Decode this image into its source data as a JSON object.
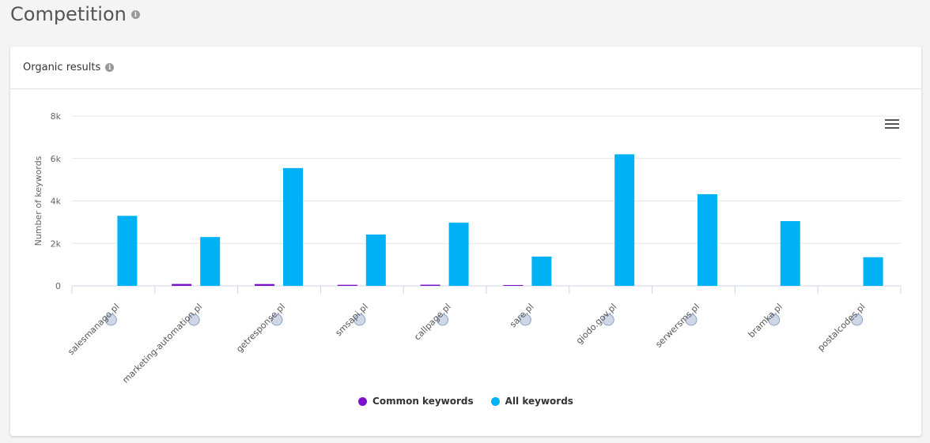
{
  "page": {
    "title": "Competition"
  },
  "card": {
    "title": "Organic results"
  },
  "colors": {
    "common": "#7a12c9",
    "all": "#00b2f5"
  },
  "chart_data": {
    "type": "bar",
    "title": "",
    "xlabel": "",
    "ylabel": "Number of keywords",
    "ylim": [
      0,
      8000
    ],
    "y_ticks": [
      {
        "value": 0,
        "label": "0"
      },
      {
        "value": 2000,
        "label": "2k"
      },
      {
        "value": 4000,
        "label": "4k"
      },
      {
        "value": 6000,
        "label": "6k"
      },
      {
        "value": 8000,
        "label": "8k"
      }
    ],
    "categories": [
      "salesmanago.pl",
      "marketing-automation.pl",
      "getresponse.pl",
      "smsapi.pl",
      "callpage.pl",
      "sare.pl",
      "giodo.gov.pl",
      "serwersms.pl",
      "bramka.pl",
      "postalcodes.pl"
    ],
    "category_icons": [
      "salesmanago-icon",
      "marketing-automation-icon",
      "getresponse-icon",
      "smsapi-icon",
      "callpage-icon",
      "sare-icon",
      "giodo-icon",
      "serwersms-icon",
      "bramka-icon",
      "postalcodes-icon"
    ],
    "series": [
      {
        "name": "Common keywords",
        "values": [
          0,
          90,
          85,
          50,
          55,
          40,
          0,
          0,
          0,
          0
        ]
      },
      {
        "name": "All keywords",
        "values": [
          3300,
          2300,
          5550,
          2420,
          2980,
          1380,
          6200,
          4320,
          3050,
          1350
        ]
      }
    ],
    "grid": true,
    "legend": "bottom"
  }
}
